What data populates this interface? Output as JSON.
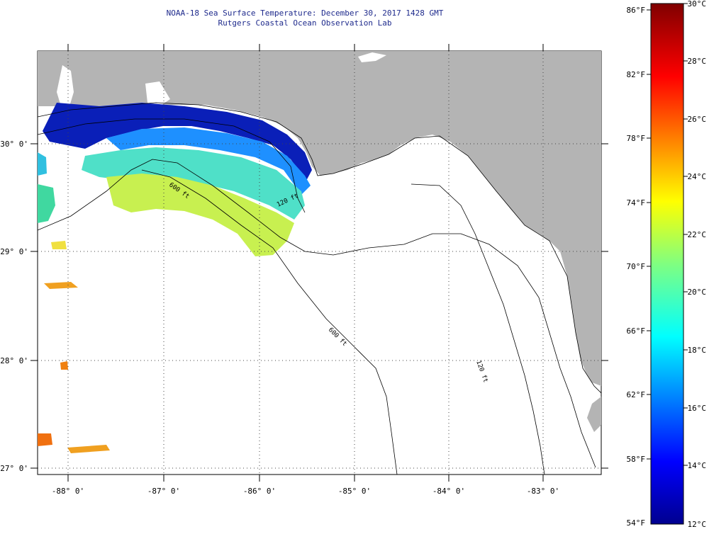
{
  "header": {
    "title": "NOAA-18 Sea Surface Temperature:  December 30, 2017 1428 GMT",
    "subtitle": "Rutgers Coastal Ocean Observation Lab"
  },
  "map": {
    "lon_labels": [
      "-88° 0'",
      "-87° 0'",
      "-86° 0'",
      "-85° 0'",
      "-84° 0'",
      "-83° 0'"
    ],
    "lat_labels": [
      "30° 0'",
      "29° 0'",
      "28° 0'",
      "27° 0'"
    ],
    "isobath_labels": [
      "600 ft",
      "120 ft",
      "600 ft",
      "120 ft"
    ],
    "colors": {
      "land": "#b4b4b4",
      "water": "#ffffff",
      "gridline": "#444444"
    }
  },
  "colorbar": {
    "fahrenheit_labels": [
      "86°F",
      "82°F",
      "78°F",
      "74°F",
      "70°F",
      "66°F",
      "62°F",
      "58°F",
      "54°F"
    ],
    "celsius_labels": [
      "30°C",
      "28°C",
      "26°C",
      "24°C",
      "22°C",
      "20°C",
      "18°C",
      "16°C",
      "14°C",
      "12°C"
    ],
    "colormap": "jet"
  }
}
